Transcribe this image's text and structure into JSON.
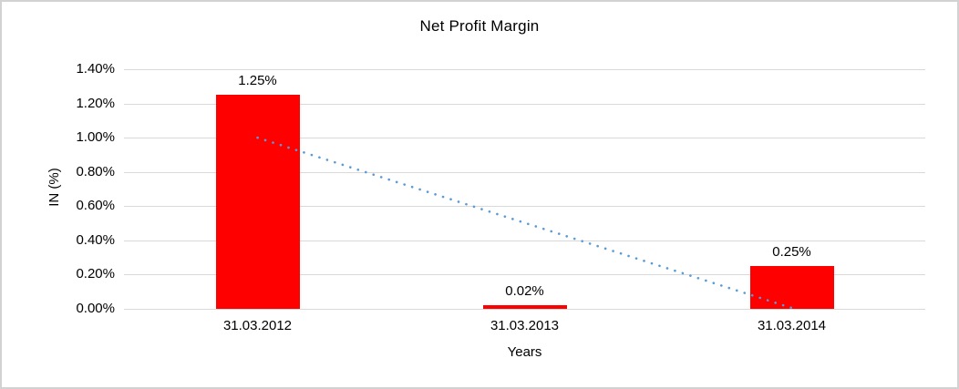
{
  "chart_data": {
    "type": "bar",
    "title": "Net Profit Margin",
    "xlabel": "Years",
    "ylabel": "IN (%)",
    "categories": [
      "31.03.2012",
      "31.03.2013",
      "31.03.2014"
    ],
    "values": [
      1.25,
      0.02,
      0.25
    ],
    "data_labels": [
      "1.25%",
      "0.02%",
      "0.25%"
    ],
    "ylim": [
      0,
      1.4
    ],
    "ytick_step": 0.2,
    "ytick_labels": [
      "1.40%",
      "1.20%",
      "1.00%",
      "0.80%",
      "0.60%",
      "0.40%",
      "0.20%",
      "0.00%"
    ],
    "grid": true,
    "legend": "none",
    "bar_color": "#FF0000",
    "gridline_color": "#d9d9d9",
    "text_color": "#000000",
    "trendline": {
      "style": "dotted",
      "color": "#5B9BD5",
      "start_value": 1.0,
      "end_value": 0.005
    }
  }
}
